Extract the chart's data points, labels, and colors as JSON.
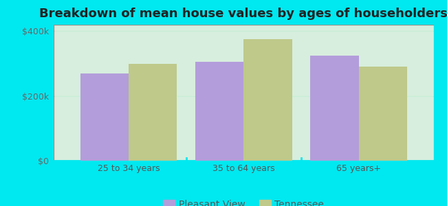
{
  "title": "Breakdown of mean house values by ages of householders",
  "categories": [
    "25 to 34 years",
    "35 to 64 years",
    "65 years+"
  ],
  "pleasant_view_values": [
    270000,
    305000,
    325000
  ],
  "tennessee_values": [
    300000,
    375000,
    290000
  ],
  "pleasant_view_color": "#b39ddb",
  "tennessee_color": "#bec98a",
  "background_color": "#00e8f0",
  "plot_bg_gradient_start": "#c8eed8",
  "plot_bg_gradient_end": "#f0faf4",
  "ylim": [
    0,
    420000
  ],
  "yticks": [
    0,
    200000,
    400000
  ],
  "ytick_labels": [
    "$0",
    "$200k",
    "$400k"
  ],
  "grid_color": "#d8eedd",
  "legend_labels": [
    "Pleasant View",
    "Tennessee"
  ],
  "bar_width": 0.42,
  "title_fontsize": 13,
  "tick_fontsize": 9,
  "legend_fontsize": 10
}
